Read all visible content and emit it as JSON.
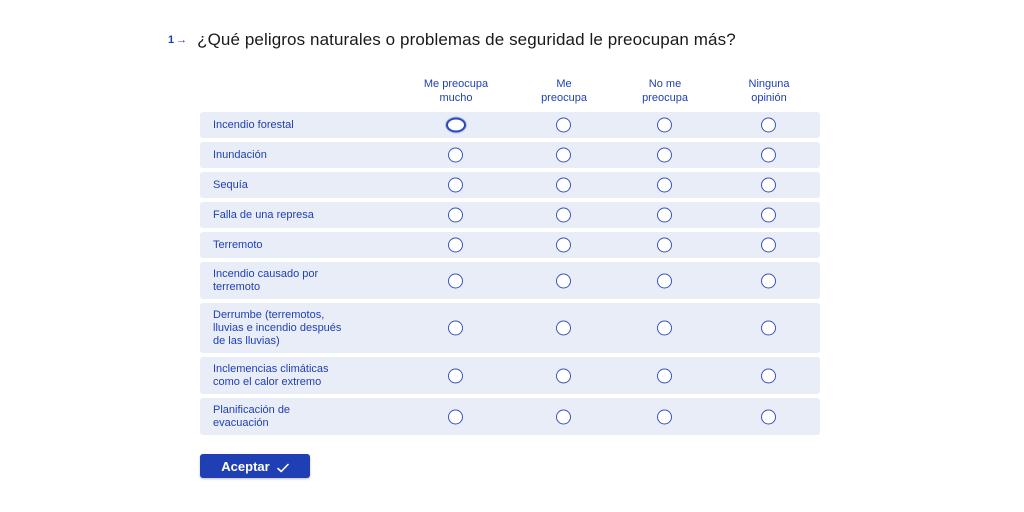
{
  "question": {
    "number": "1",
    "arrow_icon": "arrow-right-icon",
    "text": "¿Qué peligros naturales o problemas de seguridad le preocupan más?"
  },
  "columns": [
    {
      "line1": "Me preocupa",
      "line2": "mucho"
    },
    {
      "line1": "Me",
      "line2": "preocupa"
    },
    {
      "line1": "No me",
      "line2": "preocupa"
    },
    {
      "line1": "Ninguna",
      "line2": "opinión"
    }
  ],
  "rows": [
    {
      "lines": [
        "Incendio forestal"
      ]
    },
    {
      "lines": [
        "Inundación"
      ]
    },
    {
      "lines": [
        "Sequía"
      ]
    },
    {
      "lines": [
        "Falla de una represa"
      ]
    },
    {
      "lines": [
        "Terremoto"
      ]
    },
    {
      "lines": [
        "Incendio causado por",
        "terremoto"
      ]
    },
    {
      "lines": [
        "Derrumbe (terremotos,",
        "lluvias e incendio después",
        "de las lluvias)"
      ]
    },
    {
      "lines": [
        "Inclemencias climáticas",
        "como el calor extremo"
      ]
    },
    {
      "lines": [
        "Planificación de",
        "evacuación"
      ]
    }
  ],
  "accept_button": {
    "label": "Aceptar",
    "icon": "check-icon"
  },
  "colors": {
    "accent": "#1f3fb4",
    "row_background": "#e8edf7",
    "text_dark": "#1a1a1a"
  }
}
